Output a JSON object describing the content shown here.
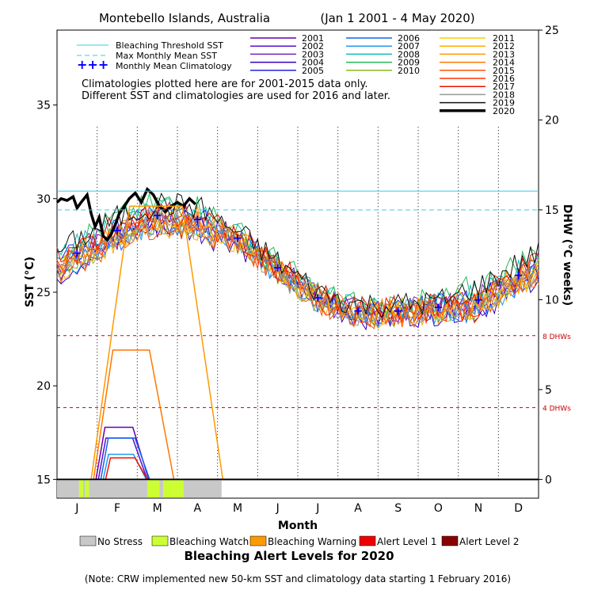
{
  "chart_data": {
    "type": "line",
    "title": "Montebello Islands, Australia",
    "date_range": "(Jan 1 2001 - 4 May 2020)",
    "xlabel": "Month",
    "ylabel_left": "SST (°C)",
    "ylabel_right": "DHW (°C weeks)",
    "months": [
      "J",
      "F",
      "M",
      "A",
      "M",
      "J",
      "J",
      "A",
      "S",
      "O",
      "N",
      "D"
    ],
    "yticks_left": [
      15,
      20,
      25,
      30,
      35
    ],
    "yticks_right": [
      0,
      5,
      10,
      15,
      20,
      25
    ],
    "ylim_left": [
      14,
      39
    ],
    "ylim_right": [
      0,
      25
    ],
    "bleaching_threshold_sst": 30.4,
    "max_monthly_mean_sst": 29.4,
    "dhw_reference_lines": [
      {
        "label": "8 DHWs",
        "value": 8
      },
      {
        "label": "4 DHWs",
        "value": 4
      }
    ],
    "legend_reference": [
      {
        "label": "Bleaching Threshold SST",
        "color": "#33ccee"
      },
      {
        "label": "Max Monthly Mean SST",
        "color": "#33ccee"
      },
      {
        "label": "Monthly Mean Climatology",
        "color": "#0000ff"
      }
    ],
    "climatology_note_line1": "Climatologies plotted here are for 2001-2015 data only.",
    "climatology_note_line2": "Different SST and climatologies are used for 2016 and later.",
    "monthly_mean_climatology": {
      "x": [
        0.5,
        1.5,
        2.5,
        3.5,
        4.5,
        5.5,
        6.5,
        7.5,
        8.5,
        9.5,
        10.5,
        11.5
      ],
      "y": [
        27.1,
        28.3,
        29.1,
        28.9,
        27.9,
        26.3,
        24.7,
        24.0,
        24.0,
        24.2,
        24.6,
        25.9
      ]
    },
    "series": [
      {
        "name": "2001",
        "color": "#6600aa"
      },
      {
        "name": "2002",
        "color": "#5511cc"
      },
      {
        "name": "2003",
        "color": "#7722bb"
      },
      {
        "name": "2004",
        "color": "#3300bb"
      },
      {
        "name": "2005",
        "color": "#2222dd"
      },
      {
        "name": "2006",
        "color": "#1166ee"
      },
      {
        "name": "2007",
        "color": "#2299ee"
      },
      {
        "name": "2008",
        "color": "#11bbbb"
      },
      {
        "name": "2009",
        "color": "#22bb55"
      },
      {
        "name": "2010",
        "color": "#88bb22"
      },
      {
        "name": "2011",
        "color": "#ffcc00"
      },
      {
        "name": "2012",
        "color": "#ffaa00"
      },
      {
        "name": "2013",
        "color": "#ff9900"
      },
      {
        "name": "2014",
        "color": "#ff7700"
      },
      {
        "name": "2015",
        "color": "#ff5500"
      },
      {
        "name": "2016",
        "color": "#ff3300"
      },
      {
        "name": "2017",
        "color": "#ee1100"
      },
      {
        "name": "2018",
        "color": "#999999"
      },
      {
        "name": "2019",
        "color": "#111111"
      },
      {
        "name": "2020",
        "color": "#000000"
      }
    ],
    "sst_2020": {
      "x": [
        0.0,
        0.1,
        0.25,
        0.4,
        0.5,
        0.6,
        0.75,
        0.85,
        0.95,
        1.05,
        1.15,
        1.25,
        1.35,
        1.45,
        1.55,
        1.65,
        1.8,
        1.95,
        2.1,
        2.25,
        2.4,
        2.55,
        2.7,
        2.85,
        3.0,
        3.15,
        3.3,
        3.45
      ],
      "y": [
        29.8,
        30.0,
        29.9,
        30.1,
        29.5,
        29.8,
        30.2,
        29.2,
        28.5,
        29.0,
        28.0,
        27.8,
        28.1,
        28.6,
        29.2,
        29.5,
        30.0,
        30.3,
        29.8,
        30.5,
        30.2,
        29.6,
        29.3,
        29.6,
        29.8,
        29.6,
        30.0,
        29.7
      ]
    },
    "dhw_2020": {
      "x": [
        0,
        3.55
      ],
      "y": [
        0,
        0
      ]
    },
    "dhw_peaks": [
      {
        "color": "#ff9900",
        "value": 15.2
      },
      {
        "color": "#ff7700",
        "value": 7.2
      },
      {
        "color": "#6600aa",
        "value": 2.9
      },
      {
        "color": "#5511cc",
        "value": 2.3
      },
      {
        "color": "#1166ee",
        "value": 2.3
      },
      {
        "color": "#2299ee",
        "value": 1.4
      },
      {
        "color": "#ee1100",
        "value": 1.2
      }
    ],
    "alert_bar_2020": [
      {
        "start": 0.0,
        "end": 0.55,
        "level": "No Stress"
      },
      {
        "start": 0.55,
        "end": 0.65,
        "level": "Bleaching Watch"
      },
      {
        "start": 0.65,
        "end": 0.7,
        "level": "No Stress"
      },
      {
        "start": 0.7,
        "end": 0.8,
        "level": "Bleaching Watch"
      },
      {
        "start": 0.8,
        "end": 2.25,
        "level": "No Stress"
      },
      {
        "start": 2.25,
        "end": 2.55,
        "level": "Bleaching Watch"
      },
      {
        "start": 2.55,
        "end": 2.65,
        "level": "No Stress"
      },
      {
        "start": 2.65,
        "end": 3.15,
        "level": "Bleaching Watch"
      },
      {
        "start": 3.15,
        "end": 4.1,
        "level": "No Stress"
      }
    ],
    "alert_levels": [
      {
        "label": "No Stress",
        "color": "#c8c8c8"
      },
      {
        "label": "Bleaching Watch",
        "color": "#ccff33"
      },
      {
        "label": "Bleaching Warning",
        "color": "#ff9900"
      },
      {
        "label": "Alert Level 1",
        "color": "#ee0000"
      },
      {
        "label": "Alert Level 2",
        "color": "#880000"
      }
    ],
    "alert_title": "Bleaching Alert Levels for 2020",
    "footnote": "(Note: CRW implemented new 50-km SST and climatology data starting 1 February 2016)"
  }
}
